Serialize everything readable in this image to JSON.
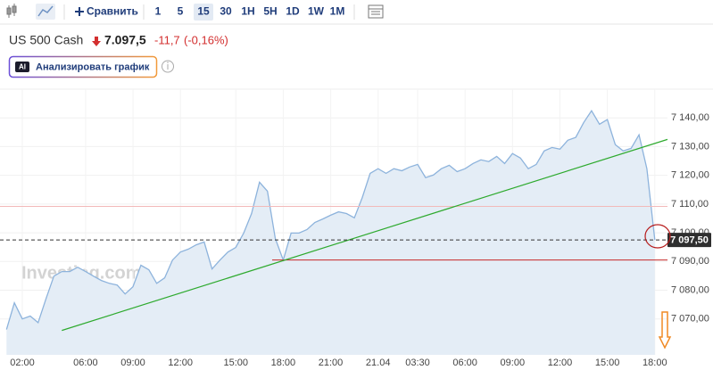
{
  "toolbar": {
    "compare": "Сравнить",
    "intervals": [
      "1",
      "5",
      "15",
      "30",
      "1H",
      "5H",
      "1D",
      "1W",
      "1M"
    ],
    "selected_interval": 2
  },
  "header": {
    "symbol": "US 500 Cash",
    "price": "7.097,5",
    "change": "-11,7",
    "change_percent": "(-0,16%)"
  },
  "ai_button": {
    "badge": "AI",
    "label": "Анализировать график"
  },
  "chart_data": {
    "type": "area",
    "watermark": "Investing.com",
    "color": "#8db3dc",
    "fill": "#e4edf6",
    "categories": [
      null,
      null,
      "02:00",
      null,
      null,
      null,
      null,
      null,
      null,
      null,
      "06:00",
      null,
      null,
      null,
      null,
      null,
      "09:00",
      null,
      null,
      null,
      null,
      null,
      "12:00",
      null,
      null,
      null,
      null,
      null,
      null,
      "15:00",
      null,
      null,
      null,
      null,
      null,
      "18:00",
      null,
      null,
      null,
      null,
      null,
      "21:00",
      null,
      null,
      null,
      null,
      null,
      "21.04",
      null,
      null,
      null,
      null,
      "03:30",
      null,
      null,
      null,
      null,
      null,
      "06:00",
      null,
      null,
      null,
      null,
      null,
      "09:00",
      null,
      null,
      null,
      null,
      null,
      "12:00",
      null,
      null,
      null,
      null,
      null,
      "15:00",
      null,
      null,
      null,
      null,
      null,
      "18:00"
    ],
    "values": [
      7066.3,
      7075.6,
      7070.0,
      7071.0,
      7068.7,
      7077.1,
      7084.9,
      7086.5,
      7086.5,
      7088.0,
      7086.5,
      7084.9,
      7083.4,
      7082.4,
      7081.8,
      7078.7,
      7081.2,
      7088.7,
      7087.1,
      7082.4,
      7084.3,
      7090.5,
      7093.3,
      7094.3,
      7095.8,
      7096.8,
      7087.4,
      7090.5,
      7093.3,
      7094.9,
      7099.9,
      7106.7,
      7117.6,
      7114.5,
      7098.0,
      7090.5,
      7099.9,
      7099.9,
      7101.1,
      7103.6,
      7104.8,
      7106.1,
      7107.3,
      7106.7,
      7105.2,
      7112.3,
      7120.7,
      7122.3,
      7120.7,
      7122.3,
      7121.6,
      7122.9,
      7123.8,
      7119.2,
      7120.1,
      7122.3,
      7123.5,
      7121.3,
      7122.3,
      7124.1,
      7125.4,
      7124.8,
      7126.6,
      7124.1,
      7127.6,
      7126.0,
      7122.3,
      7123.8,
      7128.5,
      7129.7,
      7129.1,
      7132.2,
      7133.2,
      7138.4,
      7142.5,
      7137.8,
      7139.4,
      7130.7,
      7128.5,
      7129.4,
      7134.1,
      7122.3,
      7097.5
    ],
    "ylim": [
      7057.5,
      7150
    ],
    "yticks": [
      {
        "value": 7070,
        "label": "7 070,00"
      },
      {
        "value": 7080,
        "label": "7 080,00"
      },
      {
        "value": 7090,
        "label": "7 090,00"
      },
      {
        "value": 7100,
        "label": "7 100,00"
      },
      {
        "value": 7110,
        "label": "7 110,00"
      },
      {
        "value": 7120,
        "label": "7 120,00"
      },
      {
        "value": 7130,
        "label": "7 130,00"
      },
      {
        "value": 7140,
        "label": "7 140,00"
      }
    ],
    "grid": true,
    "last_price": {
      "value": 7097.5,
      "label": "7 097,50"
    },
    "reference_lines": [
      {
        "value": 7109.2,
        "color": "#f2b9b9"
      },
      {
        "value": 7090.5,
        "color": "#c62828",
        "start": 33.6
      }
    ],
    "trendline": {
      "color": "#2eaa2e",
      "start": [
        7,
        7066
      ],
      "end": [
        83.6,
        7132.5
      ]
    }
  }
}
